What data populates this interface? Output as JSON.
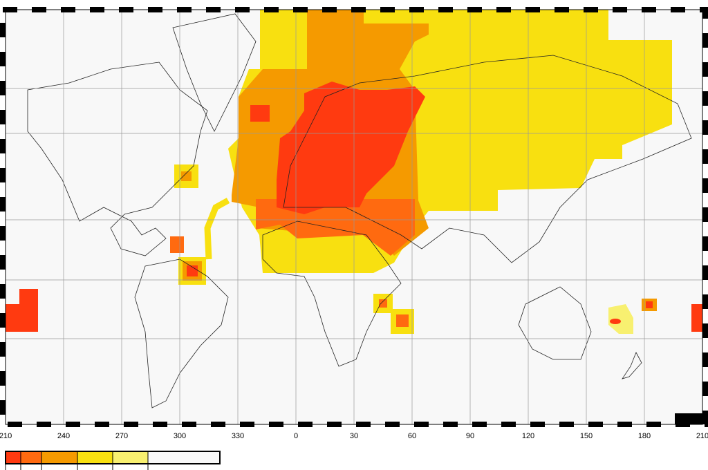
{
  "axis": {
    "longitude_labels": [
      "210",
      "240",
      "270",
      "300",
      "330",
      "0",
      "30",
      "60",
      "90",
      "120",
      "150",
      "180",
      "210"
    ]
  },
  "legend": {
    "colors": [
      "#ff3a10",
      "#ff6a10",
      "#f59a00",
      "#f8e010",
      "#f8f070",
      "#f8f8f8"
    ]
  }
}
